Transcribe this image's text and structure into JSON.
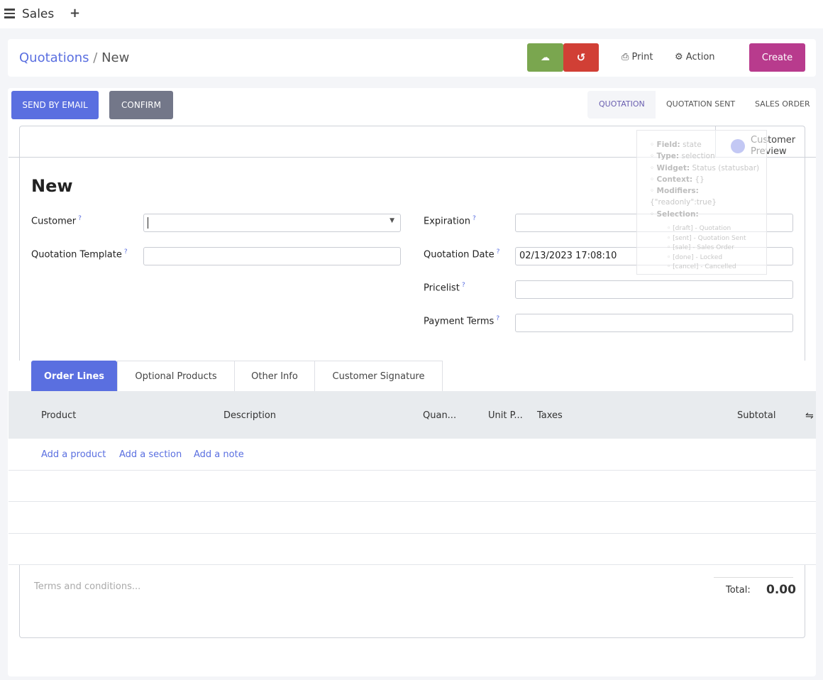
{
  "topbar": {
    "app": "Sales",
    "menu_icon": "hamburger-icon",
    "add_icon": "plus-icon"
  },
  "breadcrumb": {
    "parent": "Quotations",
    "separator": "/",
    "current": "New"
  },
  "control": {
    "save_icon": "cloud-upload-icon",
    "discard_icon": "undo-icon",
    "print": "Print",
    "action": "Action",
    "create": "Create"
  },
  "colors": {
    "accent": "#5a6fe0",
    "save": "#7aa64f",
    "discard": "#d13f35",
    "create": "#b83b8d",
    "confirm": "#737789"
  },
  "header": {
    "send_email": "SEND BY EMAIL",
    "confirm": "CONFIRM",
    "status": [
      "QUOTATION",
      "QUOTATION SENT",
      "SALES ORDER"
    ],
    "active_status": "QUOTATION"
  },
  "smart_button": {
    "label1": "Customer",
    "label2": "Preview",
    "icon": "globe-icon"
  },
  "tooltip": {
    "lines": [
      [
        "Field:",
        "state"
      ],
      [
        "Type:",
        "selection"
      ],
      [
        "Widget:",
        "Status (statusbar)"
      ],
      [
        "Context:",
        "{}"
      ],
      [
        "Modifiers:",
        "{\"readonly\":true}"
      ],
      [
        "Selection:",
        ""
      ]
    ],
    "selection": [
      "[draft] - Quotation",
      "[sent] - Quotation Sent",
      "[sale] - Sales Order",
      "[done] - Locked",
      "[cancel] - Cancelled"
    ]
  },
  "form": {
    "title": "New",
    "help": "?",
    "customer": {
      "label": "Customer",
      "value": ""
    },
    "template": {
      "label": "Quotation Template",
      "value": ""
    },
    "expiration": {
      "label": "Expiration",
      "value": ""
    },
    "date": {
      "label": "Quotation Date",
      "value": "02/13/2023 17:08:10"
    },
    "pricelist": {
      "label": "Pricelist",
      "value": ""
    },
    "payment_terms": {
      "label": "Payment Terms",
      "value": ""
    }
  },
  "tabs": [
    "Order Lines",
    "Optional Products",
    "Other Info",
    "Customer Signature"
  ],
  "table": {
    "columns": [
      "Product",
      "Description",
      "Quan...",
      "Unit P...",
      "Taxes",
      "Subtotal"
    ],
    "add_product": "Add a product",
    "add_section": "Add a section",
    "add_note": "Add a note"
  },
  "footer": {
    "terms_placeholder": "Terms and conditions...",
    "total_label": "Total:",
    "total": "0.00"
  }
}
